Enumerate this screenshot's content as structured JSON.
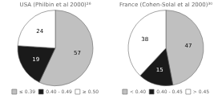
{
  "chart_data": [
    {
      "type": "pie",
      "title": "USA (Philbin et al 2000)²⁶",
      "categories": [
        "≤ 0.39",
        "0.40 - 0.49",
        "≥ 0.50"
      ],
      "values": [
        57,
        19,
        24
      ],
      "colors": [
        "#c0c0c0",
        "#1a1a1a",
        "#ffffff"
      ],
      "data_labels": true,
      "legend": "bottom"
    },
    {
      "type": "pie",
      "title": "France (Cohen-Solal et al 2000)³⁰",
      "categories": [
        "< 0.40",
        "0.40 - 0.45",
        "> 0.45"
      ],
      "values": [
        47,
        15,
        38
      ],
      "colors": [
        "#c0c0c0",
        "#1a1a1a",
        "#ffffff"
      ],
      "data_labels": true,
      "legend": "bottom"
    }
  ]
}
